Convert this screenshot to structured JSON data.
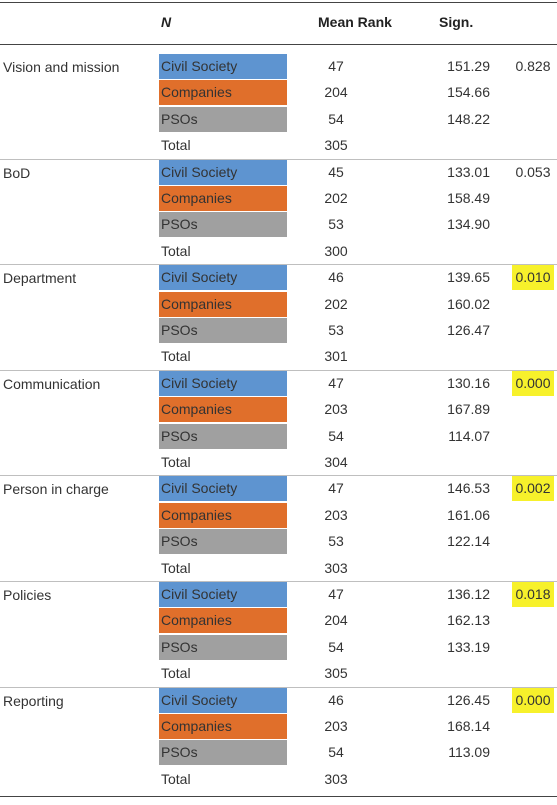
{
  "header": {
    "col_n": "N",
    "col_mean_rank": "Mean Rank",
    "col_sign": "Sign."
  },
  "colors": {
    "civil_society": "#5e94d0",
    "companies": "#e06f2b",
    "psos": "#a0a0a0",
    "highlight": "#f7f12b"
  },
  "blocks": [
    {
      "variable": "Vision and mission",
      "sign": "0.828",
      "highlight": false,
      "rows": [
        {
          "group": "Civil Society",
          "n": "47",
          "mean_rank": "151.29"
        },
        {
          "group": "Companies",
          "n": "204",
          "mean_rank": "154.66"
        },
        {
          "group": "PSOs",
          "n": "54",
          "mean_rank": "148.22"
        },
        {
          "group": "Total",
          "n": "305",
          "mean_rank": ""
        }
      ]
    },
    {
      "variable": "BoD",
      "sign": "0.053",
      "highlight": false,
      "rows": [
        {
          "group": "Civil Society",
          "n": "45",
          "mean_rank": "133.01"
        },
        {
          "group": "Companies",
          "n": "202",
          "mean_rank": "158.49"
        },
        {
          "group": "PSOs",
          "n": "53",
          "mean_rank": "134.90"
        },
        {
          "group": "Total",
          "n": "300",
          "mean_rank": ""
        }
      ]
    },
    {
      "variable": "Department",
      "sign": "0.010",
      "highlight": true,
      "rows": [
        {
          "group": "Civil Society",
          "n": "46",
          "mean_rank": "139.65"
        },
        {
          "group": "Companies",
          "n": "202",
          "mean_rank": "160.02"
        },
        {
          "group": "PSOs",
          "n": "53",
          "mean_rank": "126.47"
        },
        {
          "group": "Total",
          "n": "301",
          "mean_rank": ""
        }
      ]
    },
    {
      "variable": "Communication",
      "sign": "0.000",
      "highlight": true,
      "rows": [
        {
          "group": "Civil Society",
          "n": "47",
          "mean_rank": "130.16"
        },
        {
          "group": "Companies",
          "n": "203",
          "mean_rank": "167.89"
        },
        {
          "group": "PSOs",
          "n": "54",
          "mean_rank": "114.07"
        },
        {
          "group": "Total",
          "n": "304",
          "mean_rank": ""
        }
      ]
    },
    {
      "variable": "Person in charge",
      "sign": "0.002",
      "highlight": true,
      "rows": [
        {
          "group": "Civil Society",
          "n": "47",
          "mean_rank": "146.53"
        },
        {
          "group": "Companies",
          "n": "203",
          "mean_rank": "161.06"
        },
        {
          "group": "PSOs",
          "n": "53",
          "mean_rank": "122.14"
        },
        {
          "group": "Total",
          "n": "303",
          "mean_rank": ""
        }
      ]
    },
    {
      "variable": "Policies",
      "sign": "0.018",
      "highlight": true,
      "rows": [
        {
          "group": "Civil Society",
          "n": "47",
          "mean_rank": "136.12"
        },
        {
          "group": "Companies",
          "n": "204",
          "mean_rank": "162.13"
        },
        {
          "group": "PSOs",
          "n": "54",
          "mean_rank": "133.19"
        },
        {
          "group": "Total",
          "n": "305",
          "mean_rank": ""
        }
      ]
    },
    {
      "variable": "Reporting",
      "sign": "0.000",
      "highlight": true,
      "rows": [
        {
          "group": "Civil Society",
          "n": "46",
          "mean_rank": "126.45"
        },
        {
          "group": "Companies",
          "n": "203",
          "mean_rank": "168.14"
        },
        {
          "group": "PSOs",
          "n": "54",
          "mean_rank": "113.09"
        },
        {
          "group": "Total",
          "n": "303",
          "mean_rank": ""
        }
      ]
    }
  ]
}
